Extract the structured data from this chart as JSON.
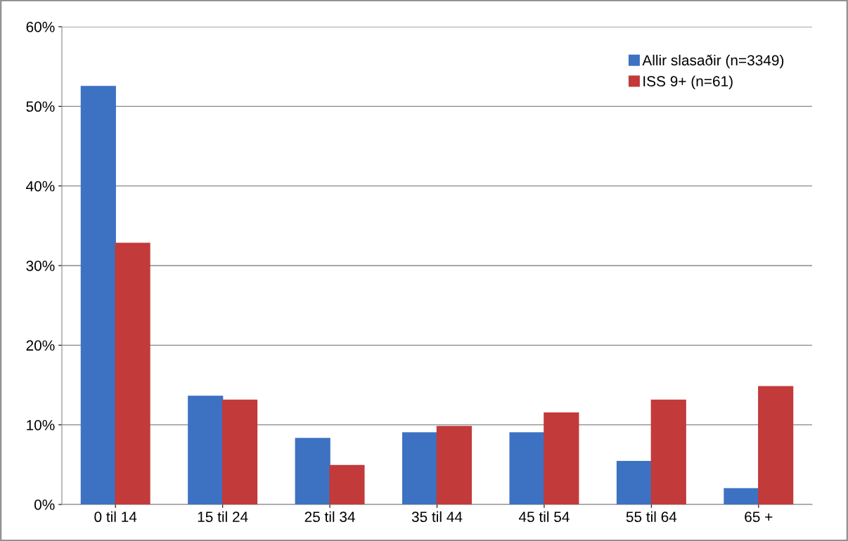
{
  "chart_data": {
    "type": "bar",
    "categories": [
      "0 til 14",
      "15 til 24",
      "25 til 34",
      "35 til 44",
      "45 til 54",
      "55 til 64",
      "65 +"
    ],
    "series": [
      {
        "name": "Allir slasaðir (n=3349)",
        "color": "#3d72c2",
        "values": [
          52.5,
          13.6,
          8.3,
          9.0,
          9.0,
          5.4,
          2.0
        ]
      },
      {
        "name": "ISS 9+ (n=61)",
        "color": "#c23a3a",
        "values": [
          32.8,
          13.1,
          4.9,
          9.8,
          11.5,
          13.1,
          14.8
        ]
      }
    ],
    "ylim": [
      0,
      60
    ],
    "yticks": [
      {
        "value": 0,
        "label": "0%"
      },
      {
        "value": 10,
        "label": "10%"
      },
      {
        "value": 20,
        "label": "20%"
      },
      {
        "value": 30,
        "label": "30%"
      },
      {
        "value": 40,
        "label": "40%"
      },
      {
        "value": 50,
        "label": "50%"
      },
      {
        "value": 60,
        "label": "60%"
      }
    ],
    "grid": "y",
    "legend": "top right"
  }
}
